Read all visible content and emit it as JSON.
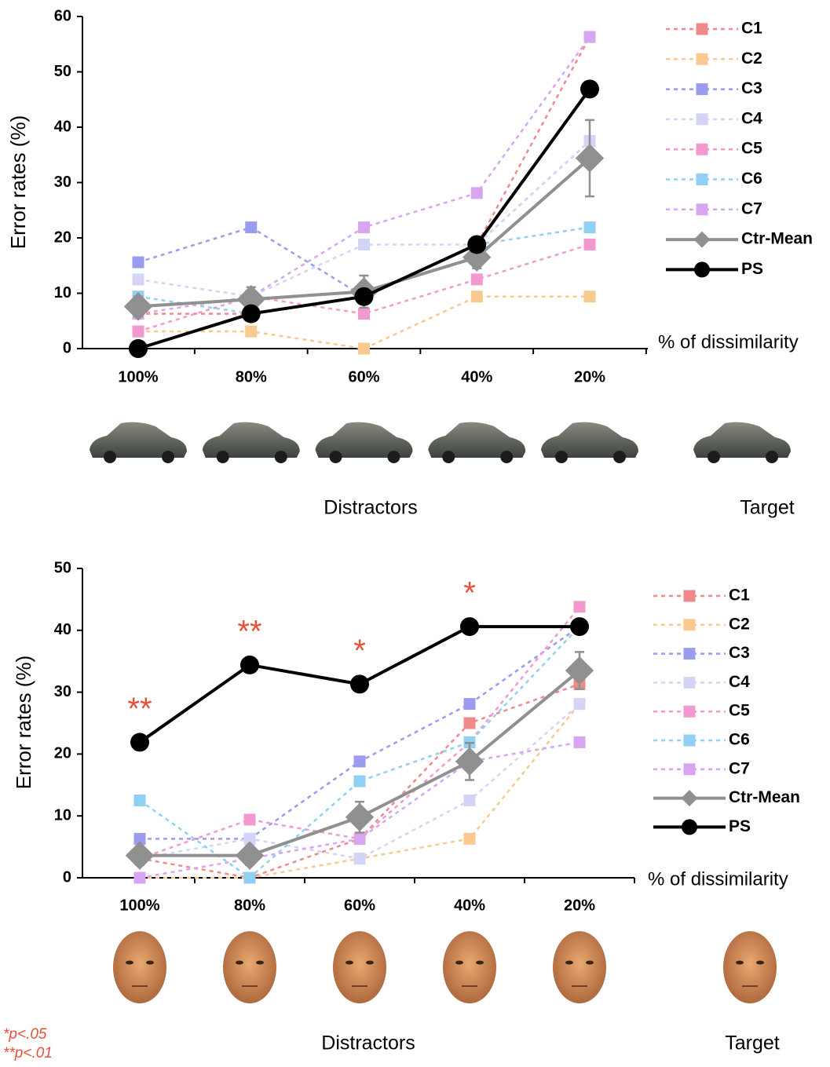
{
  "chart_data": [
    {
      "type": "line",
      "y_label": "Error rates (%)",
      "x_label": "% of dissimilarity",
      "categories": [
        "100%",
        "80%",
        "60%",
        "40%",
        "20%"
      ],
      "ylim": [
        0,
        60
      ],
      "yticks": [
        0,
        10,
        20,
        30,
        40,
        50,
        60
      ],
      "series": [
        {
          "name": "C1",
          "color": "#f08a8a",
          "marker": "square",
          "dashed": true,
          "values": [
            6.3,
            6.3,
            9.4,
            18.8,
            56.3
          ]
        },
        {
          "name": "C2",
          "color": "#f9c98f",
          "marker": "square",
          "dashed": true,
          "values": [
            3.1,
            3.1,
            0,
            9.4,
            9.4
          ]
        },
        {
          "name": "C3",
          "color": "#9b9bf0",
          "marker": "square",
          "dashed": true,
          "values": [
            15.6,
            21.9,
            9.4,
            18.8,
            37.5
          ]
        },
        {
          "name": "C4",
          "color": "#d4d4f7",
          "marker": "square",
          "dashed": true,
          "values": [
            12.5,
            9.4,
            18.8,
            18.8,
            37.5
          ]
        },
        {
          "name": "C5",
          "color": "#f29ad0",
          "marker": "square",
          "dashed": true,
          "values": [
            3.1,
            9.4,
            6.3,
            12.5,
            18.8
          ]
        },
        {
          "name": "C6",
          "color": "#90d0f5",
          "marker": "square",
          "dashed": true,
          "values": [
            9.4,
            6.3,
            9.4,
            18.8,
            21.9
          ]
        },
        {
          "name": "C7",
          "color": "#d8a5f2",
          "marker": "square",
          "dashed": true,
          "values": [
            6.3,
            9.4,
            21.9,
            28.1,
            56.3
          ]
        },
        {
          "name": "Ctr-Mean",
          "color": "#909090",
          "marker": "diamond",
          "dashed": false,
          "values": [
            7.6,
            8.9,
            10.3,
            16.5,
            34.4
          ],
          "errors": [
            1.8,
            2.2,
            2.9,
            2.0,
            6.9
          ]
        },
        {
          "name": "PS",
          "color": "#000000",
          "marker": "circle",
          "dashed": false,
          "values": [
            0,
            6.3,
            9.4,
            18.8,
            46.9
          ]
        }
      ],
      "distractor_label": "Distractors",
      "target_label": "Target"
    },
    {
      "type": "line",
      "y_label": "Error rates (%)",
      "x_label": "% of dissimilarity",
      "categories": [
        "100%",
        "80%",
        "60%",
        "40%",
        "20%"
      ],
      "ylim": [
        0,
        50
      ],
      "yticks": [
        0,
        10,
        20,
        30,
        40,
        50
      ],
      "series": [
        {
          "name": "C1",
          "color": "#f08a8a",
          "marker": "square",
          "dashed": true,
          "values": [
            3.1,
            0,
            6.3,
            25.0,
            31.3
          ]
        },
        {
          "name": "C2",
          "color": "#f9c98f",
          "marker": "square",
          "dashed": true,
          "values": [
            0,
            0,
            3.1,
            6.3,
            28.1
          ]
        },
        {
          "name": "C3",
          "color": "#9b9bf0",
          "marker": "square",
          "dashed": true,
          "values": [
            6.3,
            6.3,
            18.8,
            28.1,
            40.6
          ]
        },
        {
          "name": "C4",
          "color": "#d4d4f7",
          "marker": "square",
          "dashed": true,
          "values": [
            3.1,
            6.3,
            3.1,
            12.5,
            28.1
          ]
        },
        {
          "name": "C5",
          "color": "#f29ad0",
          "marker": "square",
          "dashed": true,
          "values": [
            3.1,
            9.4,
            6.3,
            21.9,
            43.8
          ]
        },
        {
          "name": "C6",
          "color": "#90d0f5",
          "marker": "square",
          "dashed": true,
          "values": [
            12.5,
            0,
            15.6,
            21.9,
            40.6
          ]
        },
        {
          "name": "C7",
          "color": "#d8a5f2",
          "marker": "square",
          "dashed": true,
          "values": [
            0,
            3.1,
            6.3,
            18.8,
            21.9
          ]
        },
        {
          "name": "Ctr-Mean",
          "color": "#909090",
          "marker": "diamond",
          "dashed": false,
          "values": [
            3.6,
            3.6,
            9.8,
            18.8,
            33.5
          ],
          "errors": [
            1.5,
            1.5,
            2.5,
            3.0,
            3.0
          ]
        },
        {
          "name": "PS",
          "color": "#000000",
          "marker": "circle",
          "dashed": false,
          "values": [
            21.9,
            34.4,
            31.3,
            40.6,
            40.6
          ]
        }
      ],
      "significance": [
        "**",
        "**",
        "*",
        "*",
        null
      ],
      "footnote": [
        "*p<.05",
        "**p<.01"
      ],
      "distractor_label": "Distractors",
      "target_label": "Target"
    }
  ]
}
